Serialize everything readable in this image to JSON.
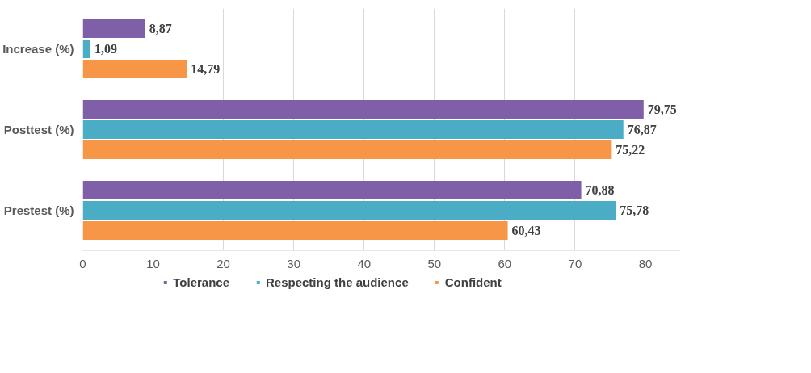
{
  "chart_data": {
    "type": "bar",
    "orientation": "horizontal",
    "categories": [
      "Increase (%)",
      "Posttest (%)",
      "Prestest (%)"
    ],
    "series": [
      {
        "name": "Tolerance",
        "color": "#7f5fa8",
        "values": [
          8.87,
          79.75,
          70.88
        ],
        "value_labels": [
          "8,87",
          "79,75",
          "70,88"
        ]
      },
      {
        "name": "Respecting the audience",
        "color": "#4bacc6",
        "values": [
          1.09,
          76.87,
          75.78
        ],
        "value_labels": [
          "1,09",
          "76,87",
          "75,78"
        ]
      },
      {
        "name": "Confident",
        "color": "#f79646",
        "values": [
          14.79,
          75.22,
          60.43
        ],
        "value_labels": [
          "14,79",
          "75,22",
          "60,43"
        ]
      }
    ],
    "xlim": [
      0,
      85
    ],
    "xticks": [
      0,
      10,
      20,
      30,
      40,
      50,
      60,
      70,
      80
    ],
    "grid": "x",
    "legend": "bottom"
  }
}
